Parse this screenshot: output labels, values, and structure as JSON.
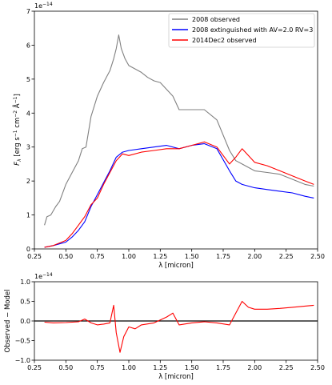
{
  "chart_data": [
    {
      "type": "line",
      "xlabel": "λ [micron]",
      "ylabel": "F_λ [erg s⁻¹ cm⁻² Å⁻¹]",
      "ylabel_main": "F",
      "ylabel_sub": "λ",
      "ylabel_rest": " [erg s",
      "ylabel_sup1": "−1",
      "ylabel_mid": " cm",
      "ylabel_sup2": "−2",
      "ylabel_a": " Å",
      "ylabel_sup3": "−1",
      "ylabel_end": "]",
      "offset_text": "1e−14",
      "offset_base": "1e",
      "offset_exp": "−14",
      "xlim": [
        0.25,
        2.5
      ],
      "ylim": [
        0,
        7
      ],
      "x_ticks": [
        "0.25",
        "0.50",
        "0.75",
        "1.00",
        "1.25",
        "1.50",
        "1.75",
        "2.00",
        "2.25",
        "2.50"
      ],
      "y_ticks": [
        "0",
        "1",
        "2",
        "3",
        "4",
        "5",
        "6",
        "7"
      ],
      "legend_position": "top-right",
      "grid": false,
      "series": [
        {
          "name": "2008 observed",
          "color": "#808080",
          "points": [
            [
              0.33,
              0.7
            ],
            [
              0.35,
              0.95
            ],
            [
              0.38,
              1.0
            ],
            [
              0.42,
              1.25
            ],
            [
              0.45,
              1.4
            ],
            [
              0.5,
              1.9
            ],
            [
              0.55,
              2.25
            ],
            [
              0.6,
              2.6
            ],
            [
              0.63,
              2.95
            ],
            [
              0.66,
              3.0
            ],
            [
              0.7,
              3.9
            ],
            [
              0.75,
              4.5
            ],
            [
              0.8,
              4.9
            ],
            [
              0.85,
              5.25
            ],
            [
              0.88,
              5.6
            ],
            [
              0.9,
              5.9
            ],
            [
              0.92,
              6.3
            ],
            [
              0.94,
              5.9
            ],
            [
              0.97,
              5.6
            ],
            [
              1.0,
              5.4
            ],
            [
              1.05,
              5.3
            ],
            [
              1.1,
              5.2
            ],
            [
              1.15,
              5.05
            ],
            [
              1.2,
              4.95
            ],
            [
              1.25,
              4.9
            ],
            [
              1.3,
              4.7
            ],
            [
              1.35,
              4.5
            ],
            [
              1.4,
              4.1
            ],
            [
              1.5,
              4.1
            ],
            [
              1.6,
              4.1
            ],
            [
              1.7,
              3.8
            ],
            [
              1.8,
              2.9
            ],
            [
              1.85,
              2.6
            ],
            [
              1.9,
              2.5
            ],
            [
              2.0,
              2.3
            ],
            [
              2.1,
              2.25
            ],
            [
              2.2,
              2.2
            ],
            [
              2.3,
              2.05
            ],
            [
              2.4,
              1.9
            ],
            [
              2.47,
              1.85
            ]
          ]
        },
        {
          "name": "2008 extinguished with AV=2.0 RV=3",
          "color": "#0000ff",
          "points": [
            [
              0.33,
              0.05
            ],
            [
              0.4,
              0.1
            ],
            [
              0.5,
              0.2
            ],
            [
              0.55,
              0.35
            ],
            [
              0.6,
              0.55
            ],
            [
              0.65,
              0.8
            ],
            [
              0.7,
              1.25
            ],
            [
              0.75,
              1.6
            ],
            [
              0.8,
              1.95
            ],
            [
              0.85,
              2.3
            ],
            [
              0.9,
              2.7
            ],
            [
              0.95,
              2.85
            ],
            [
              1.0,
              2.9
            ],
            [
              1.1,
              2.95
            ],
            [
              1.2,
              3.0
            ],
            [
              1.3,
              3.05
            ],
            [
              1.4,
              2.95
            ],
            [
              1.5,
              3.05
            ],
            [
              1.6,
              3.1
            ],
            [
              1.7,
              2.95
            ],
            [
              1.8,
              2.3
            ],
            [
              1.85,
              2.0
            ],
            [
              1.9,
              1.9
            ],
            [
              2.0,
              1.8
            ],
            [
              2.1,
              1.75
            ],
            [
              2.2,
              1.7
            ],
            [
              2.3,
              1.65
            ],
            [
              2.4,
              1.55
            ],
            [
              2.47,
              1.5
            ]
          ]
        },
        {
          "name": "2014Dec2 observed",
          "color": "#ff0000",
          "points": [
            [
              0.33,
              0.05
            ],
            [
              0.4,
              0.1
            ],
            [
              0.5,
              0.25
            ],
            [
              0.55,
              0.45
            ],
            [
              0.6,
              0.7
            ],
            [
              0.65,
              0.95
            ],
            [
              0.7,
              1.3
            ],
            [
              0.75,
              1.5
            ],
            [
              0.8,
              1.9
            ],
            [
              0.85,
              2.25
            ],
            [
              0.9,
              2.6
            ],
            [
              0.95,
              2.8
            ],
            [
              1.0,
              2.75
            ],
            [
              1.1,
              2.85
            ],
            [
              1.2,
              2.9
            ],
            [
              1.3,
              2.95
            ],
            [
              1.4,
              2.95
            ],
            [
              1.5,
              3.05
            ],
            [
              1.6,
              3.15
            ],
            [
              1.7,
              3.0
            ],
            [
              1.8,
              2.5
            ],
            [
              1.85,
              2.7
            ],
            [
              1.9,
              2.95
            ],
            [
              2.0,
              2.55
            ],
            [
              2.1,
              2.45
            ],
            [
              2.2,
              2.3
            ],
            [
              2.3,
              2.15
            ],
            [
              2.4,
              2.0
            ],
            [
              2.47,
              1.9
            ]
          ]
        }
      ]
    },
    {
      "type": "line",
      "xlabel": "λ [micron]",
      "ylabel": "Observed − Model",
      "offset_text": "1e−14",
      "offset_base": "1e",
      "offset_exp": "−14",
      "xlim": [
        0.25,
        2.5
      ],
      "ylim": [
        -1.0,
        1.0
      ],
      "x_ticks": [
        "0.25",
        "0.50",
        "0.75",
        "1.00",
        "1.25",
        "1.50",
        "1.75",
        "2.00",
        "2.25",
        "2.50"
      ],
      "y_ticks": [
        "−1.0",
        "−0.5",
        "0.0",
        "0.5",
        "1.0"
      ],
      "grid": false,
      "reference_line": 0,
      "series": [
        {
          "color": "#ff0000",
          "points": [
            [
              0.33,
              -0.03
            ],
            [
              0.4,
              -0.05
            ],
            [
              0.5,
              -0.04
            ],
            [
              0.6,
              -0.02
            ],
            [
              0.65,
              0.05
            ],
            [
              0.7,
              -0.05
            ],
            [
              0.75,
              -0.1
            ],
            [
              0.8,
              -0.08
            ],
            [
              0.85,
              -0.05
            ],
            [
              0.88,
              0.4
            ],
            [
              0.9,
              -0.3
            ],
            [
              0.93,
              -0.8
            ],
            [
              0.96,
              -0.4
            ],
            [
              1.0,
              -0.15
            ],
            [
              1.05,
              -0.2
            ],
            [
              1.1,
              -0.1
            ],
            [
              1.2,
              -0.05
            ],
            [
              1.3,
              0.1
            ],
            [
              1.35,
              0.2
            ],
            [
              1.4,
              -0.1
            ],
            [
              1.5,
              -0.05
            ],
            [
              1.6,
              -0.02
            ],
            [
              1.7,
              -0.05
            ],
            [
              1.8,
              -0.1
            ],
            [
              1.85,
              0.2
            ],
            [
              1.9,
              0.5
            ],
            [
              1.95,
              0.35
            ],
            [
              2.0,
              0.3
            ],
            [
              2.1,
              0.3
            ],
            [
              2.2,
              0.32
            ],
            [
              2.3,
              0.35
            ],
            [
              2.4,
              0.38
            ],
            [
              2.47,
              0.4
            ]
          ]
        }
      ]
    }
  ]
}
